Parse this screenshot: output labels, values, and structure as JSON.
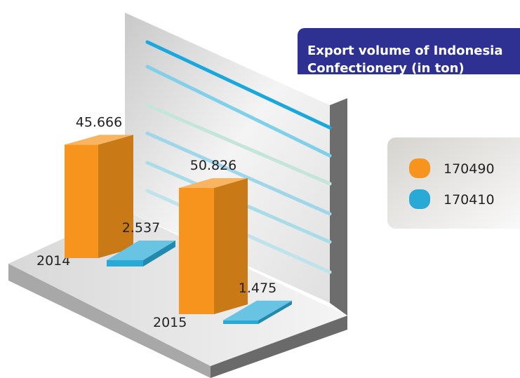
{
  "chart_data": {
    "type": "bar3d",
    "title": "Export volume of Indonesia Confectionery (in ton)",
    "categories": [
      "2014",
      "2015"
    ],
    "series": [
      {
        "name": "170490",
        "color": "#f7941d",
        "values": [
          45666,
          50826
        ],
        "value_labels": [
          "45.666",
          "50.826"
        ]
      },
      {
        "name": "170410",
        "color": "#29a9d6",
        "values": [
          2537,
          1475
        ],
        "value_labels": [
          "2.537",
          "1.475"
        ]
      }
    ]
  }
}
